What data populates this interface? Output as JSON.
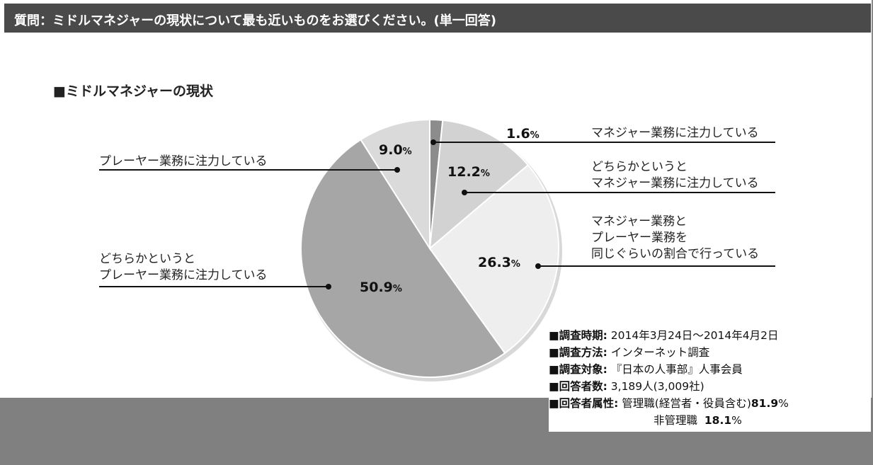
{
  "header": {
    "question": "質問：ミドルマネジャーの現状について最も近いものをお選びください。(単一回答)"
  },
  "chart_data": {
    "type": "pie",
    "title": "■ミドルマネジャーの現状",
    "slices": [
      {
        "label_lines": [
          "マネジャー業務に注力している"
        ],
        "value": 1.6,
        "color": "#8c8c8c"
      },
      {
        "label_lines": [
          "どちらかというと",
          "マネジャー業務に注力している"
        ],
        "value": 12.2,
        "color": "#d2d2d2"
      },
      {
        "label_lines": [
          "マネジャー業務と",
          "プレーヤー業務を",
          "同じぐらいの割合で行っている"
        ],
        "value": 26.3,
        "color": "#eeeeee"
      },
      {
        "label_lines": [
          "どちらかというと",
          "プレーヤー業務に注力している"
        ],
        "value": 50.9,
        "color": "#a6a6a6"
      },
      {
        "label_lines": [
          "プレーヤー業務に注力している"
        ],
        "value": 9.0,
        "color": "#dadada"
      }
    ],
    "unit": "%"
  },
  "survey_info": {
    "period_label": "■調査時期:",
    "period_value": "2014年3月24日～2014年4月2日",
    "method_label": "■調査方法:",
    "method_value": "インターネット調査",
    "target_label": "■調査対象:",
    "target_value": "『日本の人事部』人事会員",
    "respondents_label": "■回答者数:",
    "respondents_value": "3,189人(3,009社)",
    "attribute_label": "■回答者属性:",
    "attribute_value1": "管理職(経営者・役員含む)",
    "attribute_pct1": "81.9",
    "attribute_pct_unit": "%",
    "attribute_value2": "非管理職",
    "attribute_pct2": "18.1"
  }
}
